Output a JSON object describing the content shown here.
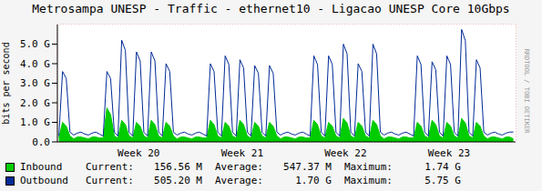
{
  "chart_data": {
    "type": "line",
    "title": "Metrosampa UNESP - Traffic - ethernet10 - Ligacao UNESP Core 10Gbps",
    "y_label": "bits per second",
    "side_text": "RRDTOOL / TOBI OETIKER",
    "stat_labels": [
      "Current:",
      "Average:",
      "Maximum:"
    ],
    "x": [
      0.1,
      0.35,
      0.6,
      0.85,
      1.1,
      1.35,
      1.6,
      1.85,
      2.1,
      2.35,
      2.6,
      2.85,
      3.1,
      3.35,
      3.6,
      3.85,
      4.1,
      4.35,
      4.6,
      4.85,
      5.1,
      5.35,
      5.6,
      5.85,
      6.1,
      6.35,
      6.6,
      6.85,
      7.1,
      7.35,
      7.6,
      7.85,
      8.1,
      8.35,
      8.6,
      8.85,
      9.1,
      9.35,
      9.6,
      9.85,
      10.1,
      10.35,
      10.6,
      10.85,
      11.1,
      11.35,
      11.6,
      11.85,
      12.1,
      12.35,
      12.6,
      12.85,
      13.1,
      13.35,
      13.6,
      13.85,
      14.1,
      14.35,
      14.6,
      14.85,
      15.1,
      15.35,
      15.6,
      15.85,
      16.1,
      16.35,
      16.6,
      16.85,
      17.1,
      17.35,
      17.6,
      17.85,
      18.1,
      18.35,
      18.6,
      18.85,
      19.1,
      19.35,
      19.6,
      19.85,
      20.1,
      20.35,
      20.6,
      20.85,
      21.1,
      21.35,
      21.6,
      21.85,
      22.1,
      22.35,
      22.6,
      22.85,
      23.1,
      23.35,
      23.6,
      23.85,
      24.1,
      24.35,
      24.6,
      24.85,
      25.1,
      25.35,
      25.6,
      25.85,
      26.1,
      26.35,
      26.6,
      26.85,
      27.1,
      27.35,
      27.6,
      27.85,
      28.1,
      28.35,
      28.6,
      28.85,
      29.1,
      29.35,
      29.6,
      29.85,
      30.1,
      30.35,
      30.6,
      30.85
    ],
    "xlim": [
      0,
      31
    ],
    "xticks": [
      {
        "value": 5.5,
        "label": "Week 20"
      },
      {
        "value": 12.5,
        "label": "Week 21"
      },
      {
        "value": 19.5,
        "label": "Week 22"
      },
      {
        "value": 26.5,
        "label": "Week 23"
      }
    ],
    "ylim": [
      0,
      6
    ],
    "yticks": [
      {
        "value": 0,
        "label": "0.0"
      },
      {
        "value": 1,
        "label": "1.0 G"
      },
      {
        "value": 2,
        "label": "2.0 G"
      },
      {
        "value": 3,
        "label": "3.0 G"
      },
      {
        "value": 4,
        "label": "4.0 G"
      },
      {
        "value": 5,
        "label": "5.0 G"
      }
    ],
    "grid": true,
    "series": [
      {
        "name": "Inbound",
        "type": "area",
        "color": "#00cc00",
        "current": "156.56 M",
        "average": "547.37 M",
        "maximum": "1.74 G",
        "values": [
          0.2,
          1.0,
          0.8,
          0.3,
          0.15,
          0.25,
          0.25,
          0.2,
          0.15,
          0.25,
          0.25,
          0.2,
          0.2,
          1.74,
          1.39,
          0.3,
          0.2,
          1.1,
          0.88,
          0.3,
          0.2,
          1.0,
          0.8,
          0.3,
          0.2,
          1.1,
          0.88,
          0.3,
          0.2,
          1.0,
          0.8,
          0.3,
          0.15,
          0.25,
          0.25,
          0.2,
          0.15,
          0.25,
          0.25,
          0.2,
          0.2,
          1.1,
          0.88,
          0.3,
          0.2,
          1.0,
          0.8,
          0.3,
          0.2,
          1.1,
          0.88,
          0.3,
          0.2,
          1.0,
          0.8,
          0.3,
          0.2,
          1.0,
          0.8,
          0.3,
          0.15,
          0.25,
          0.25,
          0.2,
          0.15,
          0.25,
          0.25,
          0.2,
          0.2,
          1.1,
          0.88,
          0.3,
          0.2,
          1.0,
          0.8,
          0.3,
          0.2,
          1.2,
          0.96,
          0.3,
          0.2,
          1.0,
          0.8,
          0.3,
          0.2,
          1.1,
          0.88,
          0.3,
          0.15,
          0.25,
          0.25,
          0.2,
          0.15,
          0.25,
          0.25,
          0.2,
          0.2,
          1.0,
          0.8,
          0.3,
          0.2,
          1.1,
          0.88,
          0.3,
          0.2,
          1.0,
          0.8,
          0.3,
          0.2,
          1.2,
          0.96,
          0.3,
          0.2,
          1.0,
          0.8,
          0.3,
          0.15,
          0.25,
          0.25,
          0.2,
          0.15,
          0.25,
          0.25,
          0.157
        ]
      },
      {
        "name": "Outbound",
        "type": "line",
        "color": "#002a97",
        "current": "505.20 M",
        "average": "1.70 G",
        "maximum": "5.75 G",
        "values": [
          0.3,
          3.6,
          3.24,
          0.5,
          0.35,
          0.45,
          0.5,
          0.4,
          0.35,
          0.45,
          0.5,
          0.4,
          0.3,
          3.6,
          3.24,
          0.5,
          0.3,
          5.2,
          4.68,
          0.5,
          0.3,
          4.6,
          4.14,
          0.5,
          0.3,
          4.6,
          4.14,
          0.5,
          0.3,
          4.0,
          3.6,
          0.5,
          0.35,
          0.45,
          0.5,
          0.4,
          0.35,
          0.45,
          0.5,
          0.4,
          0.3,
          4.0,
          3.6,
          0.5,
          0.3,
          4.4,
          3.96,
          0.5,
          0.3,
          4.2,
          3.78,
          0.5,
          0.3,
          3.9,
          3.51,
          0.5,
          0.3,
          3.9,
          3.51,
          0.5,
          0.35,
          0.45,
          0.5,
          0.4,
          0.35,
          0.45,
          0.5,
          0.4,
          0.3,
          4.4,
          3.96,
          0.5,
          0.3,
          4.4,
          3.96,
          0.5,
          0.3,
          5.0,
          4.5,
          0.5,
          0.3,
          4.0,
          3.6,
          0.5,
          0.3,
          5.0,
          4.5,
          0.5,
          0.35,
          0.45,
          0.5,
          0.4,
          0.35,
          0.45,
          0.5,
          0.4,
          0.3,
          4.4,
          3.96,
          0.5,
          0.3,
          4.1,
          3.69,
          0.5,
          0.3,
          4.4,
          3.96,
          0.5,
          0.3,
          5.75,
          5.18,
          0.5,
          0.3,
          4.2,
          3.78,
          0.5,
          0.35,
          0.45,
          0.5,
          0.4,
          0.35,
          0.45,
          0.5,
          0.505
        ]
      }
    ]
  }
}
